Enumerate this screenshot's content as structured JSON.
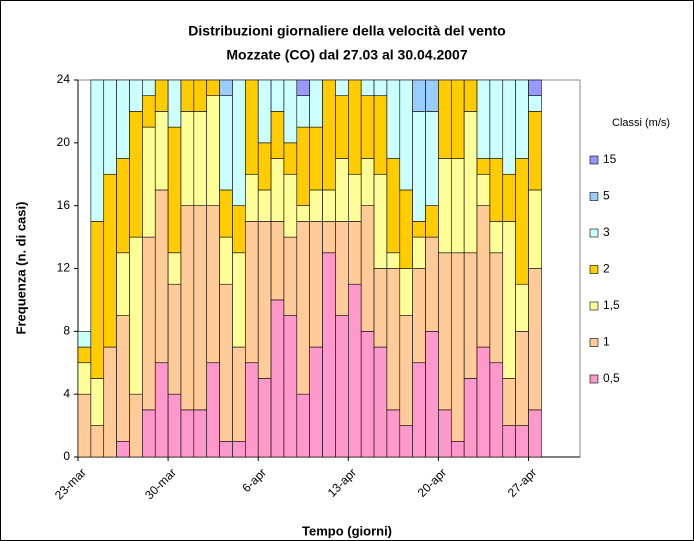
{
  "chart_data": {
    "type": "stacked_bar",
    "title": "Distribuzioni giornaliere della velocità del vento",
    "subtitle": "Mozzate (CO) dal 27.03 al 30.04.2007",
    "x_label": "Tempo (giorni)",
    "y_label": "Frequenza (n. di casi)",
    "legend_title": "Classi (m/s)",
    "categories": [
      "23-mar",
      null,
      null,
      null,
      null,
      null,
      null,
      "30-mar",
      null,
      null,
      null,
      null,
      null,
      null,
      "6-apr",
      null,
      null,
      null,
      null,
      null,
      null,
      "13-apr",
      null,
      null,
      null,
      null,
      null,
      null,
      "20-apr",
      null,
      null,
      null,
      null,
      null,
      null,
      "27-apr",
      null,
      null,
      null
    ],
    "series": [
      {
        "name": "0,5",
        "color": "#ff99cc",
        "values": [
          0,
          0,
          0,
          1,
          0,
          3,
          6,
          4,
          3,
          3,
          6,
          1,
          1,
          6,
          5,
          10,
          9,
          4,
          7,
          13,
          9,
          11,
          8,
          7,
          3,
          2,
          6,
          8,
          3,
          1,
          5,
          7,
          6,
          2,
          2,
          3,
          null,
          null,
          null
        ]
      },
      {
        "name": "1",
        "color": "#ffcc99",
        "values": [
          4,
          2,
          7,
          8,
          4,
          11,
          11,
          7,
          13,
          13,
          10,
          10,
          6,
          9,
          10,
          5,
          5,
          11,
          8,
          2,
          6,
          4,
          8,
          5,
          9,
          7,
          6,
          6,
          10,
          12,
          8,
          9,
          7,
          3,
          6,
          9,
          null,
          null,
          null
        ]
      },
      {
        "name": "1,5",
        "color": "#ffff99",
        "values": [
          2,
          3,
          0,
          4,
          10,
          7,
          5,
          2,
          6,
          6,
          7,
          3,
          6,
          3,
          2,
          4,
          4,
          1,
          2,
          2,
          4,
          3,
          3,
          6,
          1,
          3,
          2,
          0,
          6,
          6,
          9,
          2,
          2,
          10,
          3,
          5,
          null,
          null,
          null
        ]
      },
      {
        "name": "2",
        "color": "#ffcc00",
        "values": [
          1,
          10,
          11,
          6,
          8,
          2,
          2,
          8,
          2,
          2,
          1,
          3,
          3,
          6,
          3,
          3,
          2,
          5,
          4,
          7,
          4,
          6,
          4,
          5,
          6,
          5,
          1,
          2,
          5,
          5,
          2,
          1,
          4,
          3,
          8,
          5,
          null,
          null,
          null
        ]
      },
      {
        "name": "3",
        "color": "#ccffff",
        "values": [
          1,
          9,
          6,
          5,
          2,
          1,
          0,
          3,
          0,
          0,
          0,
          6,
          8,
          0,
          4,
          2,
          4,
          2,
          3,
          0,
          1,
          0,
          1,
          1,
          5,
          7,
          7,
          6,
          0,
          0,
          0,
          5,
          5,
          6,
          5,
          1,
          null,
          null,
          null
        ]
      },
      {
        "name": "5",
        "color": "#99ccff",
        "values": [
          0,
          0,
          0,
          0,
          0,
          0,
          0,
          0,
          0,
          0,
          0,
          1,
          0,
          0,
          0,
          0,
          0,
          0,
          0,
          0,
          0,
          0,
          0,
          0,
          0,
          0,
          2,
          2,
          0,
          0,
          0,
          0,
          0,
          0,
          0,
          0,
          null,
          null,
          null
        ]
      },
      {
        "name": "15",
        "color": "#9999ff",
        "values": [
          0,
          0,
          0,
          0,
          0,
          0,
          0,
          0,
          0,
          0,
          0,
          0,
          0,
          0,
          0,
          0,
          0,
          1,
          0,
          0,
          0,
          0,
          0,
          0,
          0,
          0,
          0,
          0,
          0,
          0,
          0,
          0,
          0,
          0,
          0,
          1,
          null,
          null,
          null
        ]
      }
    ],
    "ylim": [
      0,
      24
    ],
    "yticks": [
      0,
      4,
      8,
      12,
      16,
      20,
      24
    ],
    "grid": false,
    "legend": "right"
  }
}
